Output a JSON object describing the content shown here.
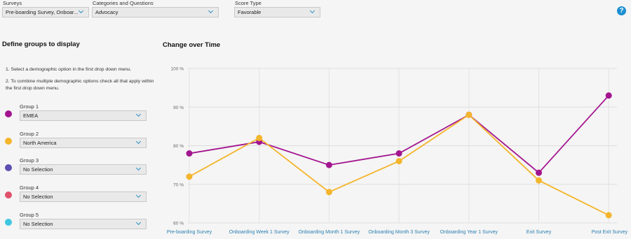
{
  "filters": [
    {
      "label": "Surveys",
      "value": "Pre-boarding Survey, Onboar..."
    },
    {
      "label": "Categories and Questions",
      "value": "Advocacy"
    },
    {
      "label": "Score Type",
      "value": "Favorable"
    }
  ],
  "help_icon": "?",
  "groups_panel": {
    "title": "Define groups to display",
    "instructions": [
      "1. Select a demographic option in the first drop down menu.",
      "2. To combine multiple demographic options check all that apply within the first drop down menu."
    ],
    "groups": [
      {
        "label": "Group 1",
        "selection": "EMEA",
        "color": "#a3158f"
      },
      {
        "label": "Group 2",
        "selection": "North America",
        "color": "#f4b52c"
      },
      {
        "label": "Group 3",
        "selection": "No Selection",
        "color": "#5b4fb3"
      },
      {
        "label": "Group 4",
        "selection": "No Selection",
        "color": "#e0526c"
      },
      {
        "label": "Group 5",
        "selection": "No Selection",
        "color": "#3ec6e0"
      }
    ]
  },
  "chart_data": {
    "type": "line",
    "title": "Change over Time",
    "categories": [
      "Pre-boarding Survey",
      "Onboarding Week 1 Survey",
      "Onboarding Month 1 Survey",
      "Onboarding Month 3 Survey",
      "Onboarding Year 1 Survey",
      "Exit Survey",
      "Post Exit Survey"
    ],
    "series": [
      {
        "color": "#a3158f",
        "values": [
          78,
          81,
          75,
          78,
          88,
          73,
          93
        ]
      },
      {
        "color": "#f4b52c",
        "values": [
          72,
          82,
          68,
          76,
          88,
          71,
          62
        ]
      }
    ],
    "ylim": [
      60,
      100
    ],
    "yticks": [
      {
        "value": 60,
        "label": "60 %"
      },
      {
        "value": 70,
        "label": "70 %"
      },
      {
        "value": 80,
        "label": "80 %"
      },
      {
        "value": 90,
        "label": "90 %"
      },
      {
        "value": 100,
        "label": "100 %"
      }
    ],
    "grid": true
  }
}
